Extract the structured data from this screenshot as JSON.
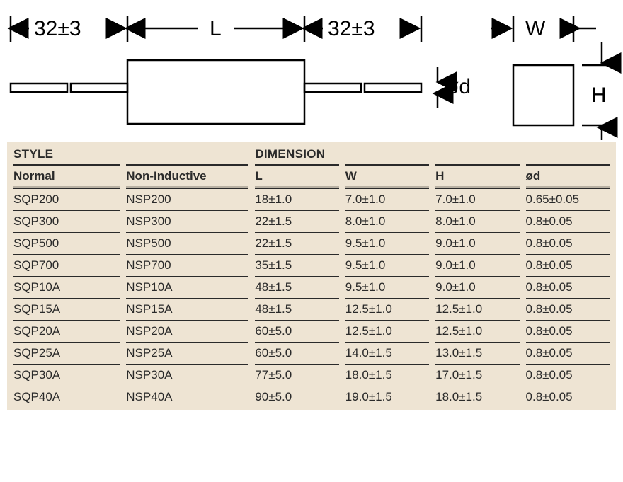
{
  "diagram": {
    "lead_dim": "32±3",
    "body_length_label": "L",
    "lead_dia_label": "ød",
    "width_label": "W",
    "height_label": "H",
    "stroke": "#000000",
    "stroke_width": 2.5,
    "label_fontsize": 30
  },
  "table": {
    "background": "#eee4d3",
    "section_headers": [
      "STYLE",
      "DIMENSION"
    ],
    "columns": [
      "Normal",
      "Non-Inductive",
      "L",
      "W",
      "H",
      "ød"
    ],
    "rows": [
      [
        "SQP200",
        "NSP200",
        "18±1.0",
        "7.0±1.0",
        "7.0±1.0",
        "0.65±0.05"
      ],
      [
        "SQP300",
        "NSP300",
        "22±1.5",
        "8.0±1.0",
        "8.0±1.0",
        "0.8±0.05"
      ],
      [
        "SQP500",
        "NSP500",
        "22±1.5",
        "9.5±1.0",
        "9.0±1.0",
        "0.8±0.05"
      ],
      [
        "SQP700",
        "NSP700",
        "35±1.5",
        "9.5±1.0",
        "9.0±1.0",
        "0.8±0.05"
      ],
      [
        "SQP10A",
        "NSP10A",
        "48±1.5",
        "9.5±1.0",
        "9.0±1.0",
        "0.8±0.05"
      ],
      [
        "SQP15A",
        "NSP15A",
        "48±1.5",
        "12.5±1.0",
        "12.5±1.0",
        "0.8±0.05"
      ],
      [
        "SQP20A",
        "NSP20A",
        "60±5.0",
        "12.5±1.0",
        "12.5±1.0",
        "0.8±0.05"
      ],
      [
        "SQP25A",
        "NSP25A",
        "60±5.0",
        "14.0±1.5",
        "13.0±1.5",
        "0.8±0.05"
      ],
      [
        "SQP30A",
        "NSP30A",
        "77±5.0",
        "18.0±1.5",
        "17.0±1.5",
        "0.8±0.05"
      ],
      [
        "SQP40A",
        "NSP40A",
        "90±5.0",
        "19.0±1.5",
        "18.0±1.5",
        "0.8±0.05"
      ]
    ]
  }
}
